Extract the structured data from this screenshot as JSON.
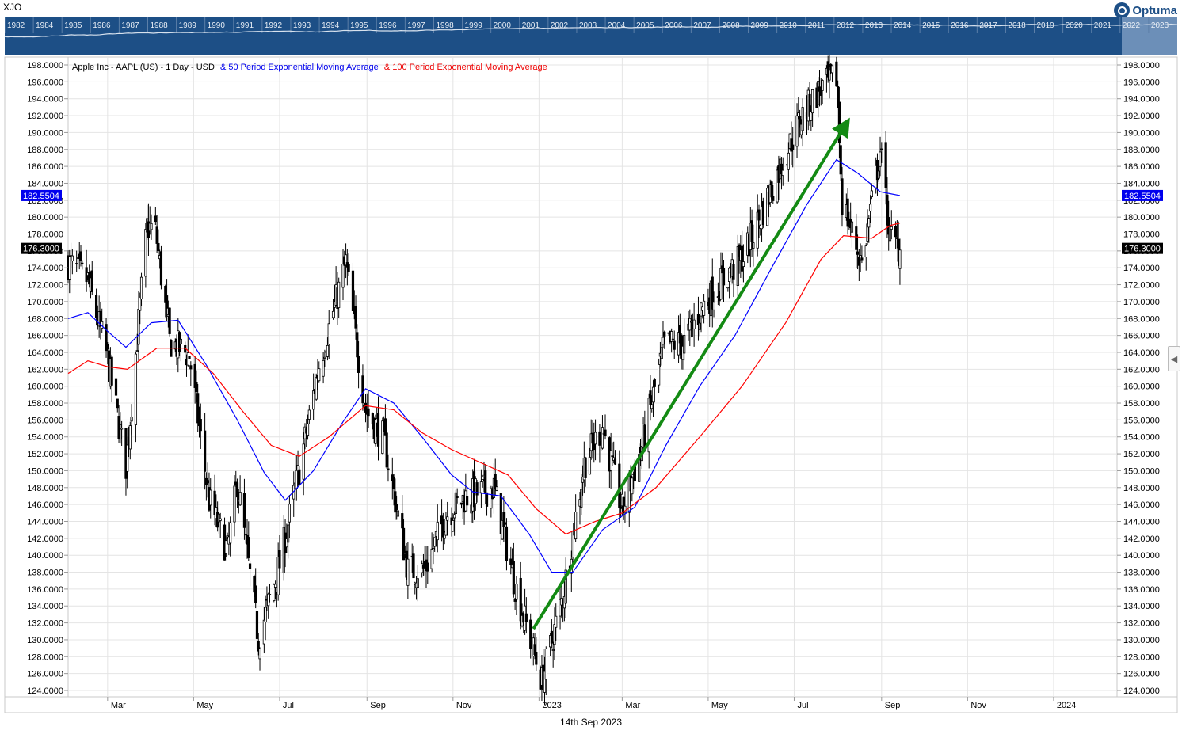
{
  "header": {
    "symbol_label": "XJO",
    "brand": "Optuma"
  },
  "overview_bar": {
    "years": [
      "1982",
      "1984",
      "1985",
      "1986",
      "1987",
      "1988",
      "1989",
      "1990",
      "1991",
      "1992",
      "1993",
      "1994",
      "1995",
      "1996",
      "1997",
      "1998",
      "1999",
      "2000",
      "2001",
      "2002",
      "2003",
      "2004",
      "2005",
      "2006",
      "2007",
      "2008",
      "2009",
      "2010",
      "2011",
      "2012",
      "2013",
      "2014",
      "2015",
      "2016",
      "2017",
      "2018",
      "2019",
      "2020",
      "2021",
      "2022",
      "2023"
    ],
    "background_color": "#1d4f86",
    "highlight_color": "#6c8fb8"
  },
  "legend": {
    "base": "Apple Inc - AAPL (US) - 1 Day - USD",
    "ema50": "& 50 Period Exponential Moving Average",
    "ema100": "& 100 Period Exponential Moving Average"
  },
  "footer": {
    "date": "14th Sep 2023"
  },
  "chart_data": {
    "type": "line",
    "title": "Apple Inc - AAPL (US) - 1 Day - USD",
    "x_tick_labels": [
      "Mar",
      "May",
      "Jul",
      "Sep",
      "Nov",
      "2023",
      "Mar",
      "May",
      "Jul",
      "Sep",
      "Nov",
      "2024"
    ],
    "y_tick_labels": [
      "124.0000",
      "126.0000",
      "128.0000",
      "130.0000",
      "132.0000",
      "134.0000",
      "136.0000",
      "138.0000",
      "140.0000",
      "142.0000",
      "144.0000",
      "146.0000",
      "148.0000",
      "150.0000",
      "152.0000",
      "154.0000",
      "156.0000",
      "158.0000",
      "160.0000",
      "162.0000",
      "164.0000",
      "166.0000",
      "168.0000",
      "170.0000",
      "172.0000",
      "174.0000",
      "176.0000",
      "178.0000",
      "180.0000",
      "182.0000",
      "184.0000",
      "186.0000",
      "188.0000",
      "190.0000",
      "192.0000",
      "194.0000",
      "196.0000",
      "198.0000"
    ],
    "ylim": [
      124,
      198
    ],
    "xlim": [
      "2022-02-01",
      "2024-02-15"
    ],
    "grid": true,
    "price_markers": [
      {
        "value": 182.5504,
        "label": "182.5504",
        "color": "#0000ee"
      },
      {
        "value": 176.3,
        "label": "176.3000",
        "color": "#000000"
      }
    ],
    "series": [
      {
        "name": "AAPL Close",
        "color": "#000000",
        "points": [
          [
            "2022-02-01",
            174.6
          ],
          [
            "2022-02-15",
            172.5
          ],
          [
            "2022-03-01",
            163.2
          ],
          [
            "2022-03-14",
            150.6
          ],
          [
            "2022-03-29",
            178.9
          ],
          [
            "2022-04-04",
            178.4
          ],
          [
            "2022-04-14",
            165.3
          ],
          [
            "2022-04-28",
            163.6
          ],
          [
            "2022-05-12",
            146.5
          ],
          [
            "2022-05-25",
            140.5
          ],
          [
            "2022-06-01",
            148.7
          ],
          [
            "2022-06-16",
            130.1
          ],
          [
            "2022-07-01",
            138.9
          ],
          [
            "2022-07-15",
            150.2
          ],
          [
            "2022-07-29",
            162.5
          ],
          [
            "2022-08-17",
            174.6
          ],
          [
            "2022-08-31",
            157.2
          ],
          [
            "2022-09-13",
            153.8
          ],
          [
            "2022-09-30",
            138.2
          ],
          [
            "2022-10-12",
            138.3
          ],
          [
            "2022-10-27",
            144.8
          ],
          [
            "2022-11-10",
            146.9
          ],
          [
            "2022-11-30",
            148.0
          ],
          [
            "2022-12-15",
            136.5
          ],
          [
            "2023-01-03",
            125.1
          ],
          [
            "2023-01-18",
            135.2
          ],
          [
            "2023-02-02",
            150.8
          ],
          [
            "2023-02-15",
            155.3
          ],
          [
            "2023-03-01",
            145.3
          ],
          [
            "2023-03-15",
            152.9
          ],
          [
            "2023-03-31",
            164.9
          ],
          [
            "2023-04-14",
            165.2
          ],
          [
            "2023-04-28",
            169.7
          ],
          [
            "2023-05-12",
            172.6
          ],
          [
            "2023-05-26",
            175.4
          ],
          [
            "2023-06-09",
            180.9
          ],
          [
            "2023-06-23",
            186.7
          ],
          [
            "2023-07-06",
            191.8
          ],
          [
            "2023-07-19",
            195.1
          ],
          [
            "2023-07-31",
            196.5
          ],
          [
            "2023-08-04",
            181.9
          ],
          [
            "2023-08-18",
            174.5
          ],
          [
            "2023-08-31",
            187.9
          ],
          [
            "2023-09-07",
            177.6
          ],
          [
            "2023-09-14",
            176.3
          ]
        ]
      },
      {
        "name": "50 Period Exponential Moving Average",
        "color": "#0000ff",
        "points": [
          [
            "2022-02-01",
            168.0
          ],
          [
            "2022-02-15",
            168.7
          ],
          [
            "2022-03-01",
            166.5
          ],
          [
            "2022-03-14",
            164.6
          ],
          [
            "2022-04-01",
            167.5
          ],
          [
            "2022-04-20",
            167.8
          ],
          [
            "2022-05-10",
            162.5
          ],
          [
            "2022-06-01",
            156.0
          ],
          [
            "2022-06-20",
            149.8
          ],
          [
            "2022-07-05",
            146.5
          ],
          [
            "2022-07-25",
            150.0
          ],
          [
            "2022-08-15",
            155.8
          ],
          [
            "2022-08-31",
            159.7
          ],
          [
            "2022-09-20",
            158.0
          ],
          [
            "2022-10-10",
            154.0
          ],
          [
            "2022-10-31",
            149.5
          ],
          [
            "2022-11-15",
            147.5
          ],
          [
            "2022-12-05",
            147.0
          ],
          [
            "2022-12-25",
            142.5
          ],
          [
            "2023-01-10",
            138.0
          ],
          [
            "2023-01-25",
            138.0
          ],
          [
            "2023-02-15",
            143.0
          ],
          [
            "2023-03-10",
            145.7
          ],
          [
            "2023-04-01",
            153.0
          ],
          [
            "2023-04-25",
            160.0
          ],
          [
            "2023-05-20",
            166.0
          ],
          [
            "2023-06-15",
            174.0
          ],
          [
            "2023-07-10",
            181.5
          ],
          [
            "2023-07-31",
            186.8
          ],
          [
            "2023-08-15",
            185.2
          ],
          [
            "2023-08-31",
            183.0
          ],
          [
            "2023-09-14",
            182.5504
          ]
        ]
      },
      {
        "name": "100 Period Exponential Moving Average",
        "color": "#ff0000",
        "points": [
          [
            "2022-02-01",
            161.5
          ],
          [
            "2022-02-15",
            163.0
          ],
          [
            "2022-03-01",
            162.3
          ],
          [
            "2022-03-15",
            162.0
          ],
          [
            "2022-04-05",
            164.5
          ],
          [
            "2022-04-25",
            164.5
          ],
          [
            "2022-05-15",
            161.5
          ],
          [
            "2022-06-05",
            157.0
          ],
          [
            "2022-06-25",
            153.0
          ],
          [
            "2022-07-15",
            151.7
          ],
          [
            "2022-08-05",
            154.0
          ],
          [
            "2022-08-31",
            157.7
          ],
          [
            "2022-09-20",
            157.2
          ],
          [
            "2022-10-10",
            154.5
          ],
          [
            "2022-10-31",
            152.5
          ],
          [
            "2022-11-20",
            151.0
          ],
          [
            "2022-12-10",
            149.5
          ],
          [
            "2022-12-30",
            145.5
          ],
          [
            "2023-01-20",
            142.5
          ],
          [
            "2023-02-10",
            144.0
          ],
          [
            "2023-03-01",
            145.0
          ],
          [
            "2023-03-25",
            148.0
          ],
          [
            "2023-04-25",
            154.0
          ],
          [
            "2023-05-25",
            160.0
          ],
          [
            "2023-06-25",
            167.5
          ],
          [
            "2023-07-20",
            175.0
          ],
          [
            "2023-08-05",
            177.8
          ],
          [
            "2023-08-25",
            177.5
          ],
          [
            "2023-09-07",
            179.0
          ],
          [
            "2023-09-14",
            179.3
          ]
        ]
      },
      {
        "name": "Trend arrow",
        "color": "#138a13",
        "points": [
          [
            "2022-12-28",
            131.3
          ],
          [
            "2023-08-06",
            190.8
          ]
        ]
      }
    ]
  }
}
